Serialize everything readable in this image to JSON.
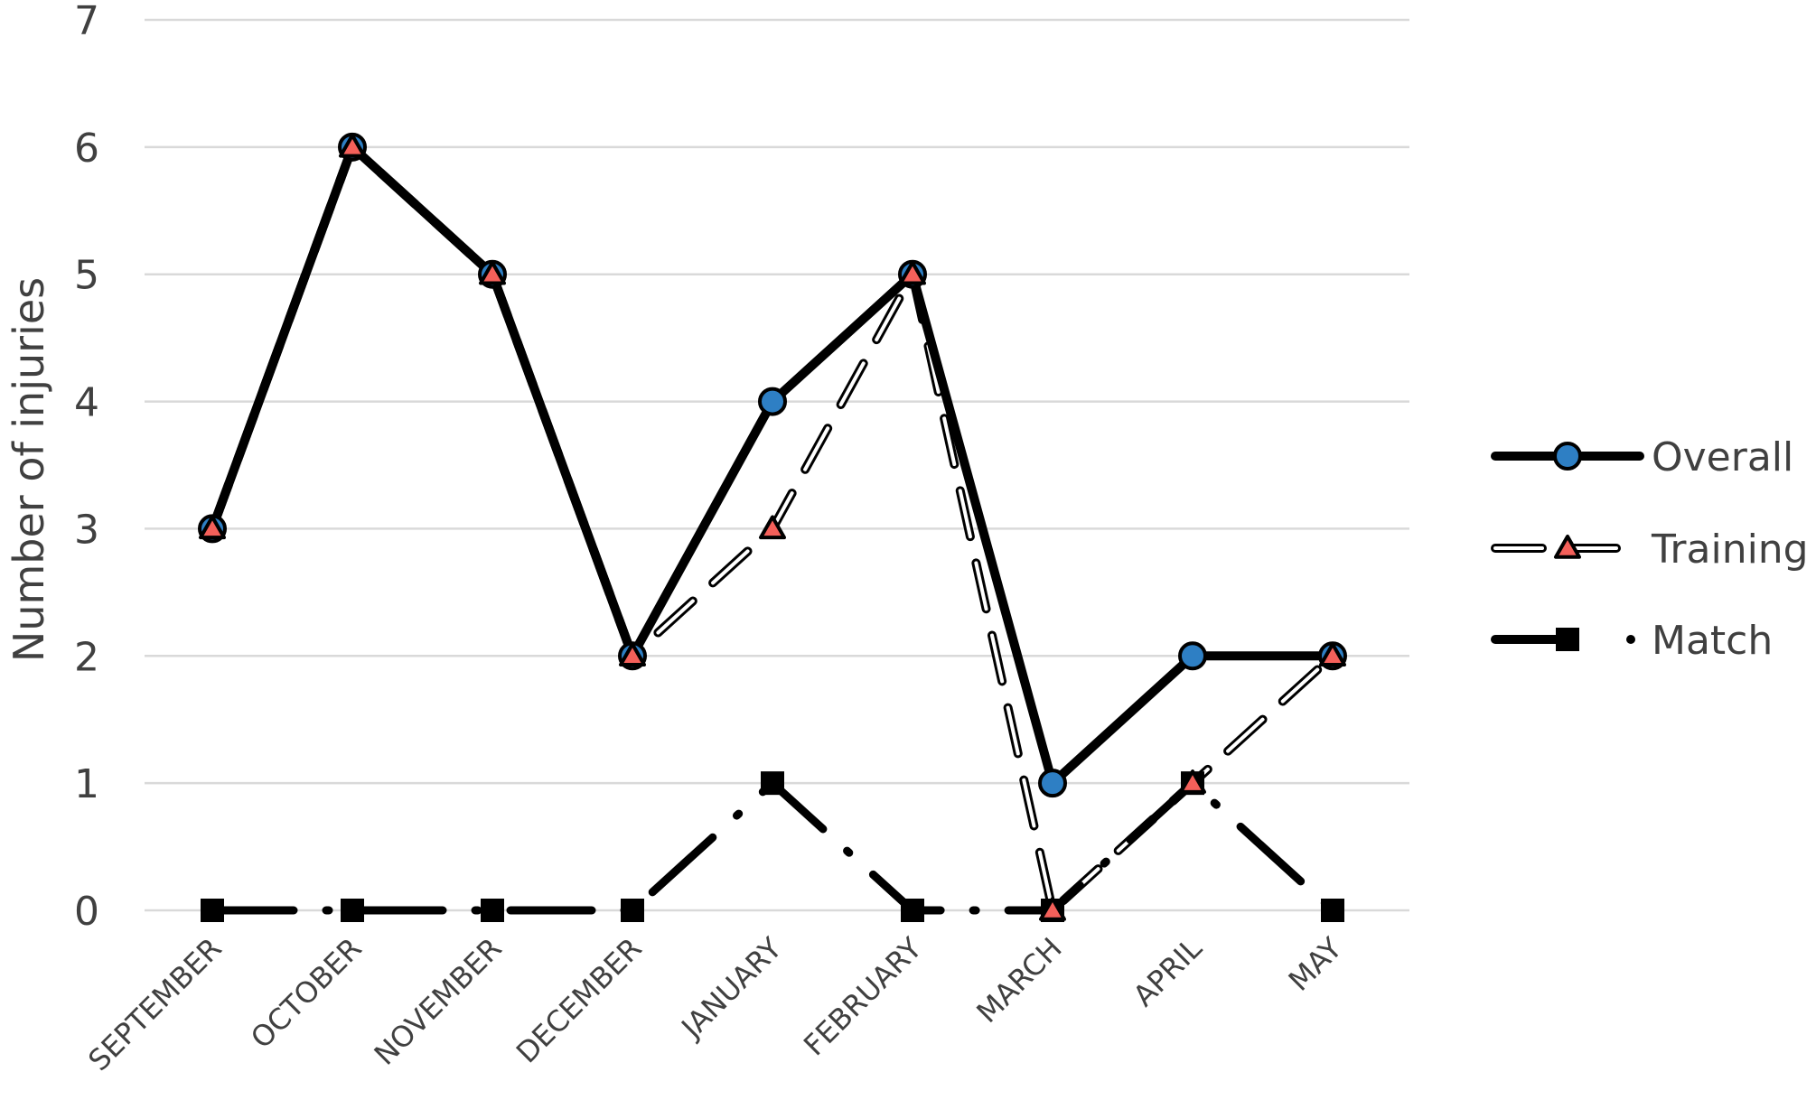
{
  "chart_data": {
    "type": "line",
    "title": "",
    "xlabel": "",
    "ylabel": "Number of injuries",
    "categories": [
      "SEPTEMBER",
      "OCTOBER",
      "NOVEMBER",
      "DECEMBER",
      "JANUARY",
      "FEBRUARY",
      "MARCH",
      "APRIL",
      "MAY"
    ],
    "ylim": [
      0,
      7
    ],
    "yticks": [
      "0",
      "1",
      "2",
      "3",
      "4",
      "5",
      "6",
      "7"
    ],
    "grid": true,
    "legend_position": "right",
    "series": [
      {
        "name": "Overall",
        "values": [
          3,
          6,
          5,
          2,
          4,
          5,
          1,
          2,
          2
        ],
        "marker": "circle",
        "line_style": "solid",
        "marker_color": "#2E7FC4",
        "line_color": "#000000"
      },
      {
        "name": "Training",
        "values": [
          3,
          6,
          5,
          2,
          3,
          5,
          0,
          1,
          2
        ],
        "marker": "triangle",
        "line_style": "hollow-dashed",
        "marker_color": "#F4605A",
        "line_color": "#000000"
      },
      {
        "name": "Match",
        "values": [
          0,
          0,
          0,
          0,
          1,
          0,
          0,
          1,
          0
        ],
        "marker": "square",
        "line_style": "dash-dot",
        "marker_color": "#000000",
        "line_color": "#000000"
      }
    ]
  }
}
